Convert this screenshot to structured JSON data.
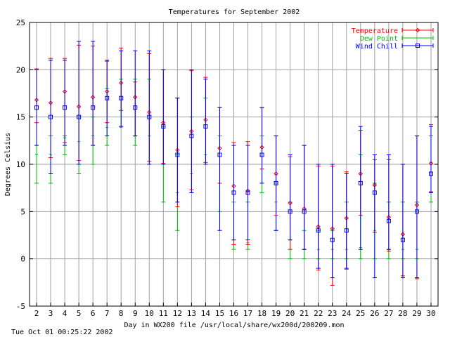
{
  "chart_data": {
    "type": "errorbar",
    "title": "Temperatures for September 2002",
    "xlabel": "Day in WX200 file /usr/local/share/wx200d/200209.mon",
    "ylabel": "Degrees Celsius",
    "timestamp": "Tue Oct 01 00:25:22 2002",
    "xlim": [
      1.5,
      30.5
    ],
    "ylim": [
      -5,
      25
    ],
    "xticks": [
      2,
      3,
      4,
      5,
      6,
      7,
      8,
      9,
      10,
      11,
      12,
      13,
      14,
      15,
      16,
      17,
      18,
      19,
      20,
      21,
      22,
      23,
      24,
      25,
      26,
      27,
      28,
      29,
      30
    ],
    "yticks": [
      -5,
      0,
      5,
      10,
      15,
      20,
      25
    ],
    "grid": true,
    "legend_position": "top-right",
    "colors": {
      "temperature": "#ff0000",
      "dew_point": "#00c000",
      "wind_chill": "#0000ff"
    },
    "series": [
      {
        "name": "Temperature",
        "x": [
          2,
          3,
          4,
          5,
          6,
          7,
          8,
          9,
          10,
          11,
          12,
          13,
          14,
          15,
          16,
          17,
          18,
          19,
          20,
          21,
          22,
          23,
          24,
          25,
          26,
          27,
          28,
          29,
          30
        ],
        "mean": [
          16.8,
          16.5,
          17.7,
          16.1,
          17.1,
          17.7,
          18.6,
          17.1,
          15.5,
          14.4,
          11.5,
          13.5,
          14.7,
          11.7,
          7.7,
          7.2,
          11.8,
          9.0,
          5.9,
          5.3,
          3.4,
          3.2,
          4.3,
          9.0,
          7.8,
          4.4,
          2.6,
          5.7,
          10.1
        ],
        "low": [
          14.4,
          10.7,
          12.3,
          10.4,
          12.0,
          14.4,
          15.7,
          13.0,
          10.3,
          10.1,
          5.5,
          7.3,
          10.2,
          8.0,
          1.5,
          1.5,
          9.5,
          4.6,
          1.0,
          1.0,
          -1.2,
          -2.8,
          -1.1,
          4.6,
          2.8,
          0.8,
          -1.8,
          -2.1,
          7.1
        ],
        "high": [
          20.1,
          21.2,
          21.2,
          22.6,
          22.5,
          20.9,
          22.3,
          18.7,
          21.7,
          20.0,
          17.0,
          19.9,
          19.2,
          16.0,
          12.3,
          12.4,
          16.0,
          13.0,
          10.8,
          12.0,
          9.8,
          9.8,
          9.2,
          13.6,
          10.5,
          10.5,
          10.0,
          13.0,
          14.2
        ]
      },
      {
        "name": "Dew Point",
        "x": [
          2,
          3,
          4,
          5,
          6,
          7,
          8,
          9,
          10,
          11,
          12,
          13,
          14,
          15,
          16,
          17,
          18,
          19,
          20,
          21,
          22,
          23,
          24,
          25,
          26,
          27,
          28,
          29,
          30
        ],
        "mean": [
          11.0,
          11.0,
          12.8,
          12.4,
          13.0,
          13.9,
          13.9,
          13.0,
          13.0,
          10.0,
          7.0,
          9.0,
          11.0,
          8.0,
          2.0,
          1.7,
          8.0,
          6.0,
          2.0,
          1.0,
          1.0,
          1.0,
          1.0,
          1.2,
          3.0,
          1.0,
          1.0,
          1.0,
          7.0
        ],
        "low": [
          8.0,
          8.0,
          11.0,
          9.0,
          10.0,
          12.0,
          14.0,
          12.0,
          10.0,
          6.0,
          3.0,
          7.0,
          10.0,
          5.0,
          1.0,
          1.0,
          7.0,
          3.0,
          0.0,
          0.0,
          0.0,
          0.0,
          0.0,
          0.0,
          0.0,
          0.0,
          0.0,
          0.0,
          6.0
        ],
        "high": [
          12.0,
          13.0,
          13.0,
          15.0,
          15.0,
          18.0,
          19.0,
          19.0,
          19.0,
          14.0,
          11.0,
          15.0,
          17.0,
          13.0,
          6.0,
          6.0,
          13.0,
          8.0,
          6.0,
          3.0,
          3.0,
          3.0,
          6.0,
          11.0,
          8.0,
          6.0,
          6.0,
          6.0,
          13.0
        ]
      },
      {
        "name": "Wind Chill",
        "x": [
          2,
          3,
          4,
          5,
          6,
          7,
          8,
          9,
          10,
          11,
          12,
          13,
          14,
          15,
          16,
          17,
          18,
          19,
          20,
          21,
          22,
          23,
          24,
          25,
          26,
          27,
          28,
          29,
          30
        ],
        "mean": [
          16,
          15,
          16,
          15,
          16,
          17,
          17,
          16,
          15,
          14,
          11,
          13,
          14,
          11,
          7,
          7,
          11,
          8,
          5,
          5,
          3,
          2,
          3,
          8,
          7,
          4,
          2,
          5,
          9
        ],
        "low": [
          12,
          9,
          12,
          10,
          12,
          13,
          14,
          13,
          10,
          10,
          6,
          7,
          10,
          3,
          2,
          2,
          8,
          3,
          2,
          1,
          -1,
          -2,
          -1,
          1,
          -2,
          1,
          -2,
          -2,
          7
        ],
        "high": [
          20,
          21,
          21,
          23,
          23,
          21,
          22,
          22,
          22,
          20,
          17,
          20,
          19,
          16,
          12,
          12,
          16,
          13,
          11,
          12,
          10,
          10,
          9,
          14,
          11,
          11,
          10,
          13,
          14
        ]
      }
    ]
  }
}
